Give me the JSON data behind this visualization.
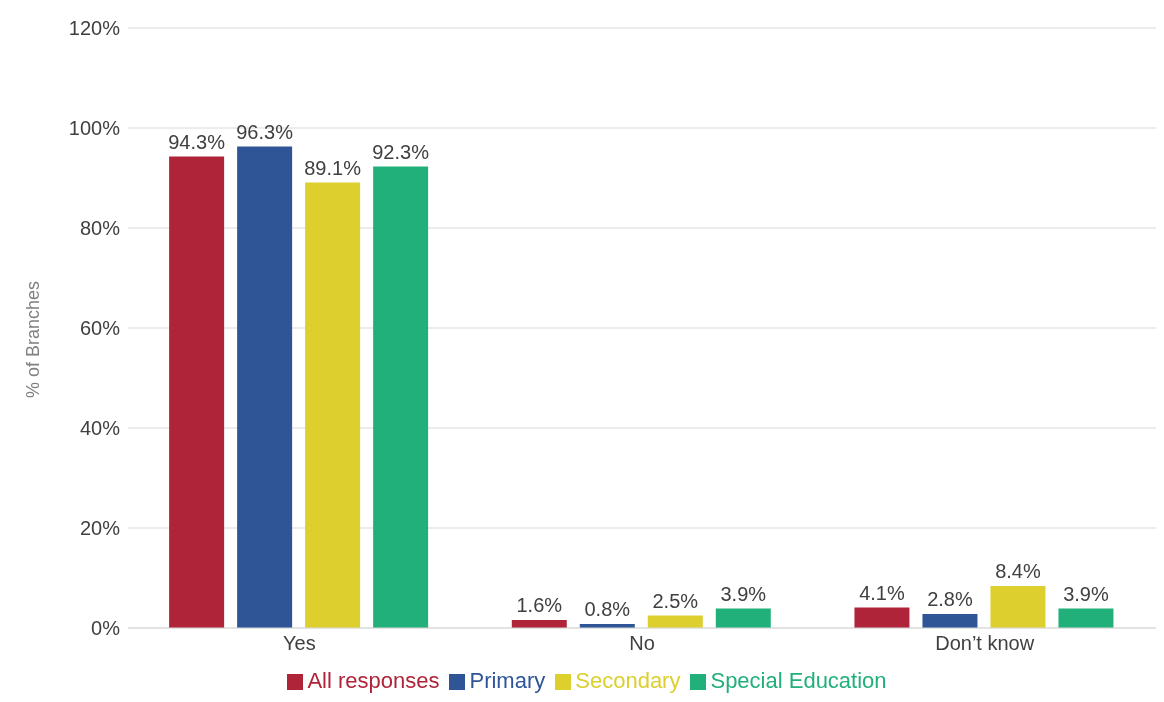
{
  "chart_data": {
    "type": "bar",
    "ylabel": "% of Branches",
    "categories": [
      "Yes",
      "No",
      "Don’t know"
    ],
    "series": [
      {
        "name": "All responses",
        "color": "#b0243a",
        "values": [
          94.3,
          1.6,
          4.1
        ],
        "value_labels": [
          "94.3%",
          "1.6%",
          "4.1%"
        ]
      },
      {
        "name": "Primary",
        "color": "#2f5597",
        "values": [
          96.3,
          0.8,
          2.8
        ],
        "value_labels": [
          "96.3%",
          "0.8%",
          "2.8%"
        ]
      },
      {
        "name": "Secondary",
        "color": "#dccf2e",
        "values": [
          89.1,
          2.5,
          8.4
        ],
        "value_labels": [
          "89.1%",
          "2.5%",
          "8.4%"
        ]
      },
      {
        "name": "Special Education",
        "color": "#22b07a",
        "values": [
          92.3,
          3.9,
          3.9
        ],
        "value_labels": [
          "92.3%",
          "3.9%",
          "3.9%"
        ]
      }
    ],
    "ylim": [
      0,
      120
    ],
    "yticks": [
      {
        "value": 0,
        "label": "0%"
      },
      {
        "value": 20,
        "label": "20%"
      },
      {
        "value": 40,
        "label": "40%"
      },
      {
        "value": 60,
        "label": "60%"
      },
      {
        "value": 80,
        "label": "80%"
      },
      {
        "value": 100,
        "label": "100%"
      },
      {
        "value": 120,
        "label": "120%"
      }
    ],
    "grid": "y",
    "legend": "bottom"
  }
}
